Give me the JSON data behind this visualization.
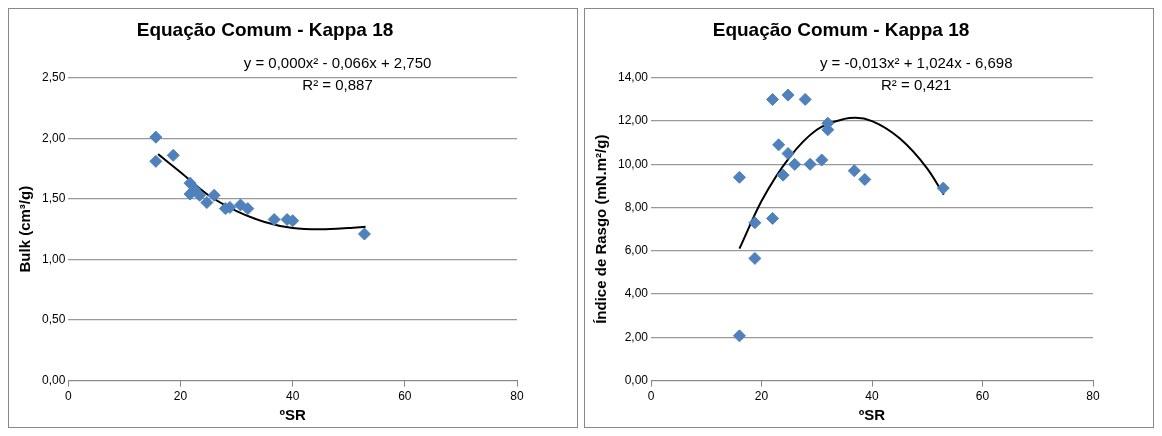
{
  "chart_data": [
    {
      "type": "scatter",
      "title": "Equação Comum - Kappa 18",
      "xlabel": "ºSR",
      "ylabel": "Bulk (cm³/g)",
      "annotations": [
        "y = 0,000x² - 0,066x + 2,750",
        "R² = 0,887"
      ],
      "xlim": [
        0,
        80
      ],
      "xticks": [
        0,
        20,
        40,
        60,
        80
      ],
      "ylim": [
        0,
        2.5
      ],
      "yticks": [
        {
          "value": 0,
          "label": "0,00"
        },
        {
          "value": 0.5,
          "label": "0,50"
        },
        {
          "value": 1,
          "label": "1,00"
        },
        {
          "value": 1.5,
          "label": "1,50"
        },
        {
          "value": 2,
          "label": "2,00"
        },
        {
          "value": 2.5,
          "label": "2,50"
        }
      ],
      "grid": "y",
      "marker": "diamond",
      "series": [
        {
          "color": "#4f81bd",
          "x": [
            15.6,
            15.6,
            18.7,
            21.7,
            21.7,
            22.5,
            23.4,
            24.2,
            24.7,
            26,
            28,
            28.8,
            30.7,
            32,
            36.7,
            39,
            40,
            52.8
          ],
          "values": [
            2.01,
            1.81,
            1.86,
            1.63,
            1.54,
            1.58,
            1.53,
            null,
            1.47,
            1.53,
            1.42,
            1.43,
            1.45,
            1.42,
            1.33,
            1.33,
            1.32,
            1.21
          ]
        },
        {
          "type": "line",
          "marker": "none",
          "color": "#000000",
          "x": [
            16,
            20,
            25,
            30,
            35,
            40,
            45,
            50,
            53
          ],
          "values": [
            1.87,
            1.72,
            1.53,
            1.4,
            1.31,
            1.26,
            1.25,
            1.26,
            1.27
          ]
        }
      ]
    },
    {
      "type": "scatter",
      "title": "Equação Comum - Kappa 18",
      "xlabel": "ºSR",
      "ylabel": "Índice de Rasgo (mN.m²/g)",
      "annotations": [
        "y = -0,013x² + 1,024x - 6,698",
        "R² = 0,421"
      ],
      "xlim": [
        0,
        80
      ],
      "xticks": [
        0,
        20,
        40,
        60,
        80
      ],
      "ylim": [
        0,
        14
      ],
      "yticks": [
        {
          "value": 0,
          "label": "0,00"
        },
        {
          "value": 2,
          "label": "2,00"
        },
        {
          "value": 4,
          "label": "4,00"
        },
        {
          "value": 6,
          "label": "6,00"
        },
        {
          "value": 8,
          "label": "8,00"
        },
        {
          "value": 10,
          "label": "10,00"
        },
        {
          "value": 12,
          "label": "12,00"
        },
        {
          "value": 14,
          "label": "14,00"
        }
      ],
      "grid": "y",
      "marker": "diamond",
      "series": [
        {
          "color": "#4f81bd",
          "x": [
            22,
            24.8,
            27.9,
            32,
            32,
            23.1,
            24.8,
            26,
            28.8,
            30.9,
            23.9,
            16,
            36.8,
            38.7,
            18.8,
            22,
            18.8,
            16,
            52.9
          ],
          "values": [
            13,
            13.2,
            13,
            11.9,
            11.6,
            10.9,
            10.5,
            10,
            10,
            10.2,
            9.5,
            9.4,
            9.7,
            9.3,
            7.3,
            7.5,
            5.65,
            2.07,
            8.9
          ]
        },
        {
          "type": "line",
          "marker": "none",
          "color": "#000000",
          "x": [
            16,
            20,
            25,
            30,
            35,
            37,
            40,
            45,
            50,
            53
          ],
          "values": [
            6.1,
            8.3,
            10.3,
            11.6,
            12.1,
            12.15,
            12,
            11.2,
            9.8,
            8.6
          ]
        }
      ]
    }
  ]
}
